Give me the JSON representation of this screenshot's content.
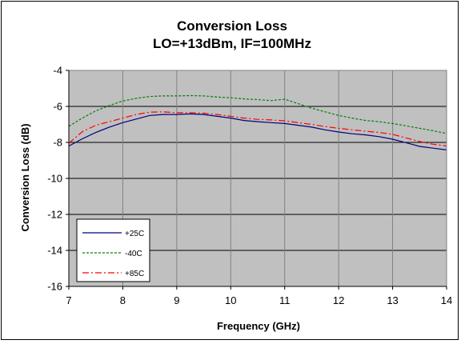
{
  "chart_data": {
    "type": "line",
    "title_lines": [
      "Conversion Loss",
      "LO=+13dBm, IF=100MHz"
    ],
    "xlabel": "Frequency (GHz)",
    "ylabel": "Conversion Loss (dB)",
    "xlim": [
      7,
      14
    ],
    "ylim": [
      -16,
      -4
    ],
    "xticks": [
      7,
      8,
      9,
      10,
      11,
      12,
      13,
      14
    ],
    "yticks": [
      -16,
      -14,
      -12,
      -10,
      -8,
      -6,
      -4
    ],
    "grid": true,
    "plot_background": "#c0c0c0",
    "legend_position": "bottom-left",
    "series": [
      {
        "name": "+25C",
        "color": "#000080",
        "dash": "solid",
        "x": [
          7.0,
          7.25,
          7.5,
          7.75,
          8.0,
          8.25,
          8.5,
          8.75,
          9.0,
          9.25,
          9.5,
          9.75,
          10.0,
          10.25,
          10.5,
          10.75,
          11.0,
          11.25,
          11.5,
          11.75,
          12.0,
          12.25,
          12.5,
          12.75,
          13.0,
          13.25,
          13.5,
          13.75,
          14.0
        ],
        "y": [
          -8.2,
          -7.8,
          -7.45,
          -7.15,
          -6.9,
          -6.7,
          -6.5,
          -6.45,
          -6.45,
          -6.42,
          -6.45,
          -6.55,
          -6.65,
          -6.78,
          -6.85,
          -6.9,
          -6.95,
          -7.05,
          -7.15,
          -7.3,
          -7.42,
          -7.52,
          -7.58,
          -7.68,
          -7.82,
          -8.02,
          -8.22,
          -8.32,
          -8.42
        ]
      },
      {
        "name": "-40C",
        "color": "#008000",
        "dash": "dotted",
        "x": [
          7.0,
          7.25,
          7.5,
          7.75,
          8.0,
          8.25,
          8.5,
          8.75,
          9.0,
          9.25,
          9.5,
          9.75,
          10.0,
          10.25,
          10.5,
          10.75,
          11.0,
          11.25,
          11.5,
          11.75,
          12.0,
          12.25,
          12.5,
          12.75,
          13.0,
          13.25,
          13.5,
          13.75,
          14.0
        ],
        "y": [
          -7.1,
          -6.65,
          -6.25,
          -5.95,
          -5.7,
          -5.55,
          -5.45,
          -5.42,
          -5.42,
          -5.4,
          -5.42,
          -5.48,
          -5.52,
          -5.58,
          -5.62,
          -5.68,
          -5.6,
          -5.85,
          -6.1,
          -6.3,
          -6.5,
          -6.65,
          -6.78,
          -6.85,
          -6.95,
          -7.08,
          -7.22,
          -7.35,
          -7.5
        ]
      },
      {
        "name": "+85C",
        "color": "#ff0000",
        "dash": "dashdot",
        "x": [
          7.0,
          7.25,
          7.5,
          7.75,
          8.0,
          8.25,
          8.5,
          8.75,
          9.0,
          9.25,
          9.5,
          9.75,
          10.0,
          10.25,
          10.5,
          10.75,
          11.0,
          11.25,
          11.5,
          11.75,
          12.0,
          12.25,
          12.5,
          12.75,
          13.0,
          13.25,
          13.5,
          13.75,
          14.0
        ],
        "y": [
          -8.05,
          -7.4,
          -7.05,
          -6.85,
          -6.65,
          -6.45,
          -6.32,
          -6.3,
          -6.35,
          -6.35,
          -6.38,
          -6.45,
          -6.55,
          -6.65,
          -6.72,
          -6.75,
          -6.8,
          -6.9,
          -7.0,
          -7.12,
          -7.22,
          -7.3,
          -7.38,
          -7.45,
          -7.55,
          -7.75,
          -7.95,
          -8.1,
          -8.2
        ]
      }
    ]
  }
}
